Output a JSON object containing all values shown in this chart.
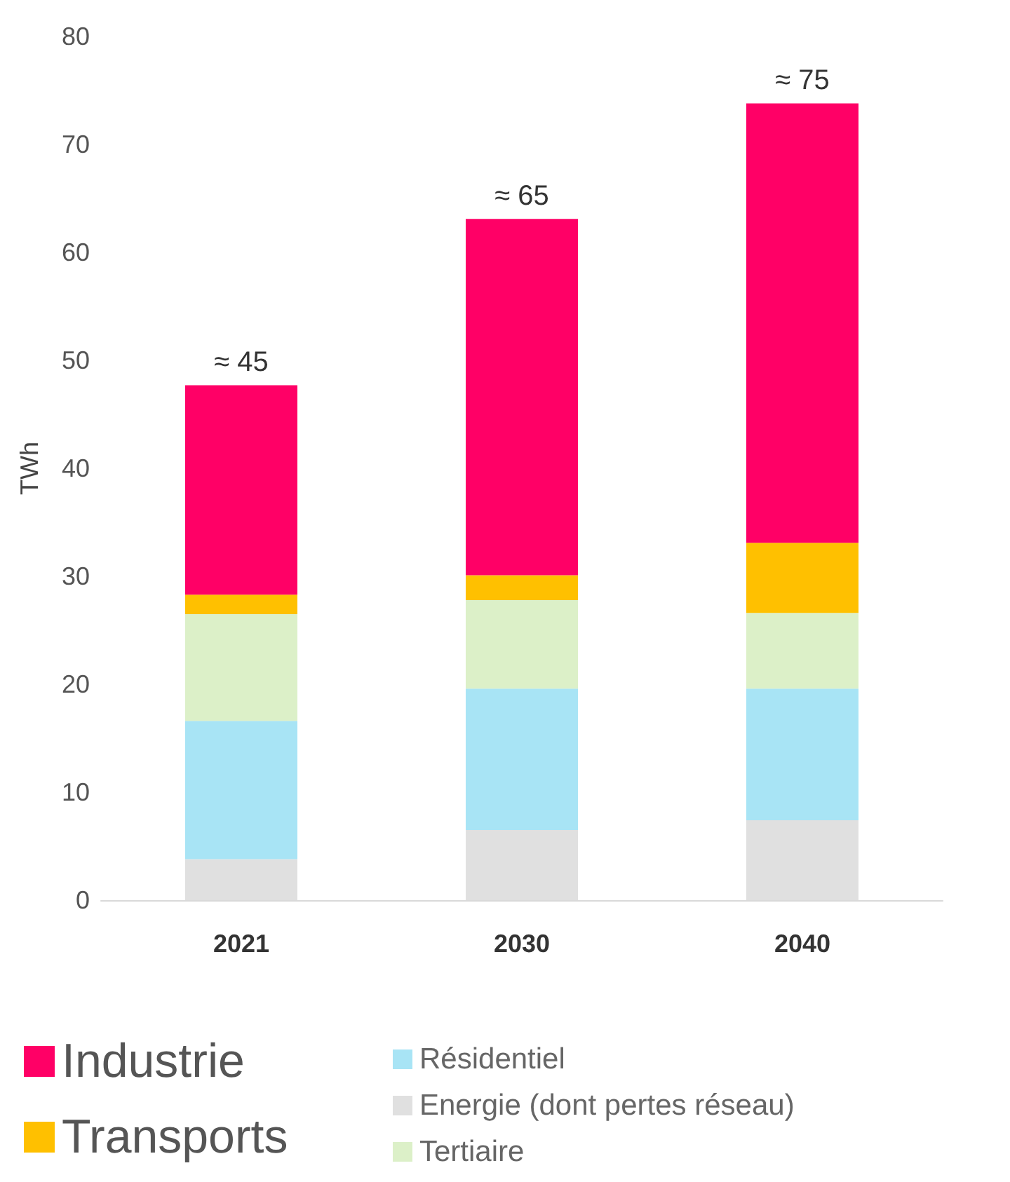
{
  "chart_data": {
    "type": "bar",
    "stacked": true,
    "ylabel": "TWh",
    "categories": [
      "2021",
      "2030",
      "2040"
    ],
    "ylim": [
      0,
      80
    ],
    "yticks": [
      0,
      10,
      20,
      30,
      40,
      50,
      60,
      70,
      80
    ],
    "grid": false,
    "legend": "bottom",
    "series": [
      {
        "name": "Energie (dont pertes réseau)",
        "color": "#e0e0e0",
        "values": [
          3.8,
          6.5,
          7.4
        ]
      },
      {
        "name": "Résidentiel",
        "color": "#a8e4f5",
        "values": [
          12.8,
          13.1,
          12.2
        ]
      },
      {
        "name": "Tertiaire",
        "color": "#dcf0c8",
        "values": [
          9.9,
          8.2,
          7.0
        ]
      },
      {
        "name": "Transports",
        "color": "#ffc000",
        "values": [
          1.8,
          2.3,
          6.5
        ]
      },
      {
        "name": "Industrie",
        "color": "#ff0066",
        "values": [
          19.4,
          33.0,
          40.7
        ]
      }
    ],
    "annotations": [
      {
        "text": "≈ 45",
        "x": "2021",
        "y": 47.7
      },
      {
        "text": "≈ 65",
        "x": "2030",
        "y": 63.1
      },
      {
        "text": "≈ 75",
        "x": "2040",
        "y": 73.8
      }
    ]
  }
}
